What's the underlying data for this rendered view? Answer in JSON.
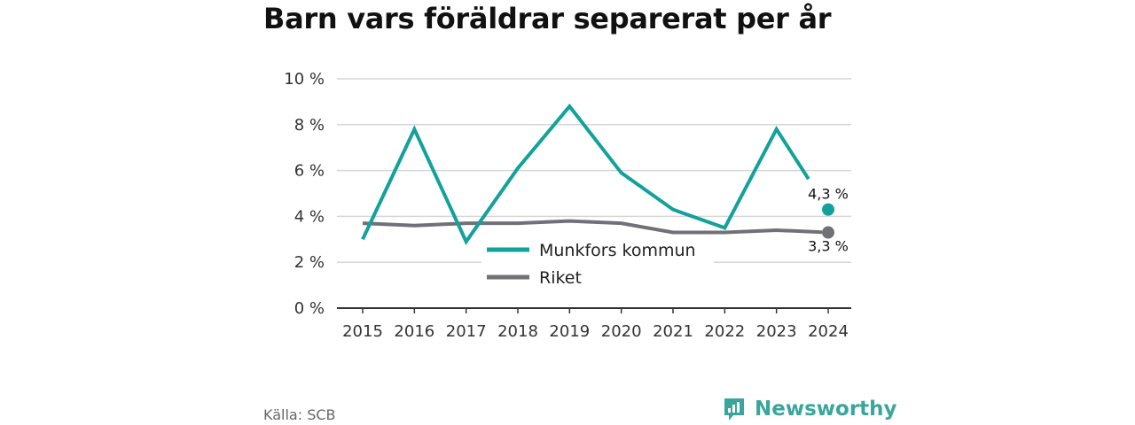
{
  "title": "Barn vars föräldrar separerat per år",
  "source": "Källa: SCB",
  "brand": "Newsworthy",
  "colors": {
    "munkfors": "#13a19b",
    "riket": "#707077",
    "grid": "#d6d6d6",
    "axis": "#333333",
    "brand": "#3aa69b"
  },
  "chart_data": {
    "type": "line",
    "x": [
      "2015",
      "2016",
      "2017",
      "2018",
      "2019",
      "2020",
      "2021",
      "2022",
      "2023",
      "2024"
    ],
    "ylim": [
      0,
      10
    ],
    "yticks": [
      0,
      2,
      4,
      6,
      8,
      10
    ],
    "ytick_labels": [
      "0 %",
      "2 %",
      "4 %",
      "6 %",
      "8 %",
      "10 %"
    ],
    "grid": true,
    "legend_position": "center",
    "series": [
      {
        "name": "Munkfors kommun",
        "color": "#13a19b",
        "values": [
          3.0,
          7.8,
          2.9,
          6.1,
          8.8,
          5.9,
          4.3,
          3.5,
          7.8,
          4.3
        ],
        "end_label": "4,3 %"
      },
      {
        "name": "Riket",
        "color": "#707077",
        "values": [
          3.7,
          3.6,
          3.7,
          3.7,
          3.8,
          3.7,
          3.3,
          3.3,
          3.4,
          3.3
        ],
        "end_label": "3,3 %"
      }
    ]
  }
}
